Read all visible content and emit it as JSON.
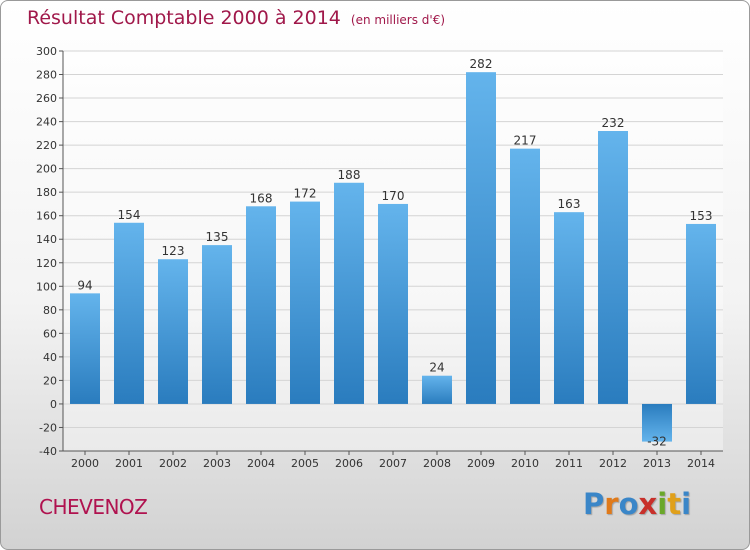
{
  "title": "Résultat Comptable 2000 à 2014",
  "unit_note": "(en milliers d'€)",
  "city": "CHEVENOZ",
  "logo_text": "Proxiti",
  "colors": {
    "title": "#a0184a",
    "bar_light": "#64b4ec",
    "bar_dark": "#2a7cbe",
    "logo": [
      "#3a86c8",
      "#e07a1a",
      "#3a86c8",
      "#c8302a",
      "#6aa82a",
      "#e0a01a",
      "#3a86c8"
    ]
  },
  "chart_data": {
    "type": "bar",
    "categories": [
      "2000",
      "2001",
      "2002",
      "2003",
      "2004",
      "2005",
      "2006",
      "2007",
      "2008",
      "2009",
      "2010",
      "2011",
      "2012",
      "2013",
      "2014"
    ],
    "values": [
      94,
      154,
      123,
      135,
      168,
      172,
      188,
      170,
      24,
      282,
      217,
      163,
      232,
      -32,
      153
    ],
    "data_labels": [
      "94",
      "154",
      "123",
      "135",
      "168",
      "172",
      "188",
      "170",
      "24",
      "282",
      "217",
      "163",
      "232",
      "-32",
      "153"
    ],
    "ylim": [
      -40,
      300
    ],
    "yticks": [
      -40,
      -20,
      0,
      20,
      40,
      60,
      80,
      100,
      120,
      140,
      160,
      180,
      200,
      220,
      240,
      260,
      280,
      300
    ],
    "ytick_labels": [
      "-40",
      "-20",
      "0",
      "20",
      "40",
      "60",
      "80",
      "100",
      "120",
      "140",
      "160",
      "180",
      "200",
      "220",
      "240",
      "260",
      "280",
      "300"
    ],
    "grid": "horizontal",
    "legend": "none",
    "xlabel": "",
    "ylabel": ""
  }
}
